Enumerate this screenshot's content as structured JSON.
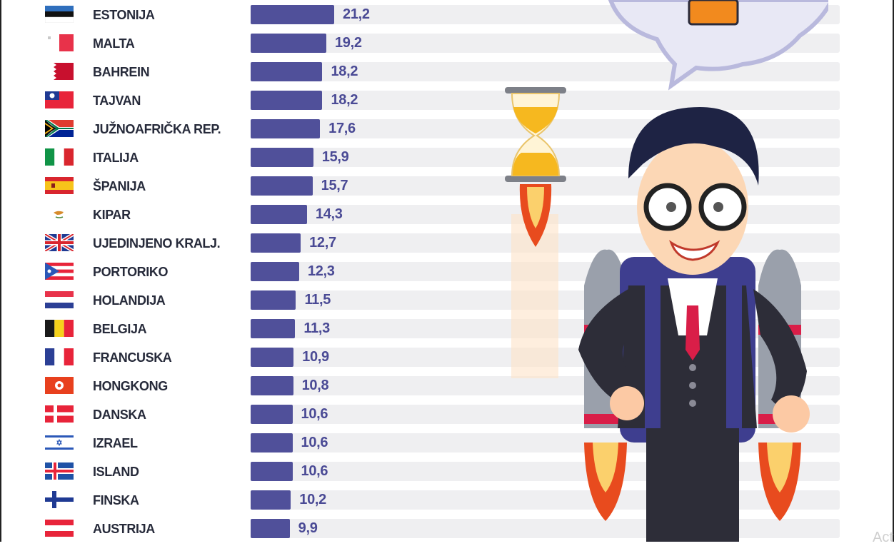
{
  "chart_data": {
    "type": "bar",
    "orientation": "horizontal",
    "categories": [
      "ESTONIJA",
      "MALTA",
      "BAHREIN",
      "TAJVAN",
      "JUŽNOAFRIČKA REP.",
      "ITALIJA",
      "ŠPANIJA",
      "KIPAR",
      "UJEDINJENO KRALJ.",
      "PORTORIKO",
      "HOLANDIJA",
      "BELGIJA",
      "FRANCUSKA",
      "HONGKONG",
      "DANSKA",
      "IZRAEL",
      "ISLAND",
      "FINSKA",
      "AUSTRIJA"
    ],
    "values": [
      21.2,
      19.2,
      18.2,
      18.2,
      17.6,
      15.9,
      15.7,
      14.3,
      12.7,
      12.3,
      11.5,
      11.3,
      10.9,
      10.8,
      10.6,
      10.6,
      10.6,
      10.2,
      9.9
    ],
    "value_labels": [
      "21,2",
      "19,2",
      "18,2",
      "18,2",
      "17,6",
      "15,9",
      "15,7",
      "14,3",
      "12,7",
      "12,3",
      "11,5",
      "11,3",
      "10,9",
      "10,8",
      "10,6",
      "10,6",
      "10,6",
      "10,2",
      "9,9"
    ],
    "flags": [
      "flag-estonia",
      "flag-malta",
      "flag-bahrain",
      "flag-taiwan",
      "flag-south-africa",
      "flag-italy",
      "flag-spain",
      "flag-cyprus",
      "flag-uk",
      "flag-puerto-rico",
      "flag-netherlands",
      "flag-belgium",
      "flag-france",
      "flag-hong-kong",
      "flag-denmark",
      "flag-israel",
      "flag-iceland",
      "flag-finland",
      "flag-austria"
    ],
    "title": "",
    "xlabel": "",
    "ylabel": "",
    "grid": false,
    "legend": "none"
  },
  "colors": {
    "bar": "#50509a",
    "track": "#efeff1",
    "value_text": "#4a4a95",
    "label_text": "#262a3a"
  },
  "illustration": {
    "subject": "businessman with jetpack, hourglass rocket, speech bubble",
    "watermark": "Act"
  }
}
